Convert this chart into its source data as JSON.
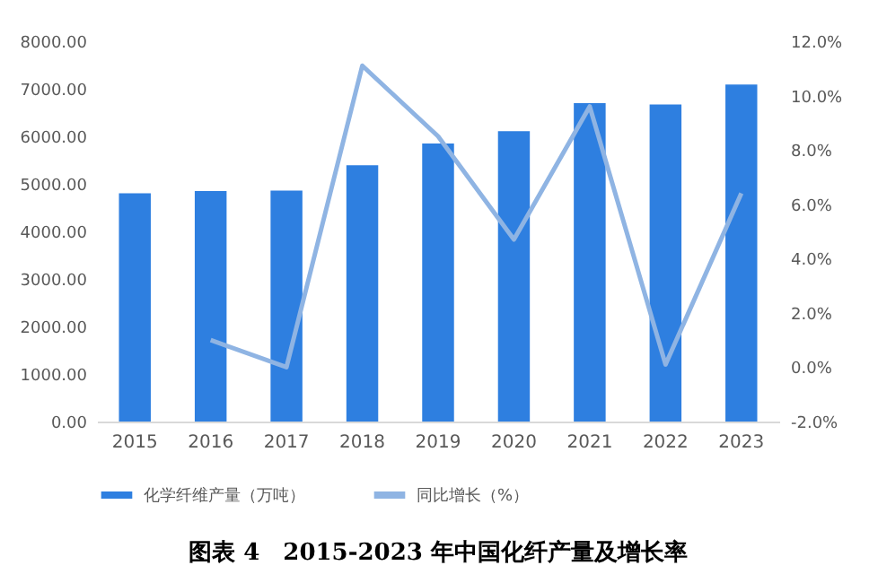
{
  "chart_data": {
    "type": "bar",
    "title": "图表 4　2015-2023 年中国化纤产量及增长率",
    "categories": [
      "2015",
      "2016",
      "2017",
      "2018",
      "2019",
      "2020",
      "2021",
      "2022",
      "2023"
    ],
    "series": [
      {
        "name": "化学纤维产量（万吨）",
        "color": "#2e7fe0",
        "values": [
          4800,
          4850,
          4860,
          5390,
          5850,
          6110,
          6700,
          6670,
          7090
        ]
      },
      {
        "name": "同比增长（%）",
        "type": "line",
        "axis": "y2",
        "color": "#8fb4e3",
        "values": [
          null,
          1.0,
          0.0,
          11.1,
          8.5,
          4.7,
          9.6,
          0.1,
          6.4
        ]
      }
    ],
    "ylim": [
      0,
      8000
    ],
    "yticks": [
      {
        "value": 0,
        "label": "0.00"
      },
      {
        "value": 1000,
        "label": "1000.00"
      },
      {
        "value": 2000,
        "label": "2000.00"
      },
      {
        "value": 3000,
        "label": "3000.00"
      },
      {
        "value": 4000,
        "label": "4000.00"
      },
      {
        "value": 5000,
        "label": "5000.00"
      },
      {
        "value": 6000,
        "label": "6000.00"
      },
      {
        "value": 7000,
        "label": "7000.00"
      },
      {
        "value": 8000,
        "label": "8000.00"
      }
    ],
    "y2lim": [
      -2,
      12
    ],
    "y2ticks": [
      {
        "value": -2,
        "label": "-2.0%"
      },
      {
        "value": 0,
        "label": "0.0%"
      },
      {
        "value": 2,
        "label": "2.0%"
      },
      {
        "value": 4,
        "label": "4.0%"
      },
      {
        "value": 6,
        "label": "6.0%"
      },
      {
        "value": 8,
        "label": "8.0%"
      },
      {
        "value": 10,
        "label": "10.0%"
      },
      {
        "value": 12,
        "label": "12.0%"
      }
    ],
    "legend": "bottom"
  }
}
